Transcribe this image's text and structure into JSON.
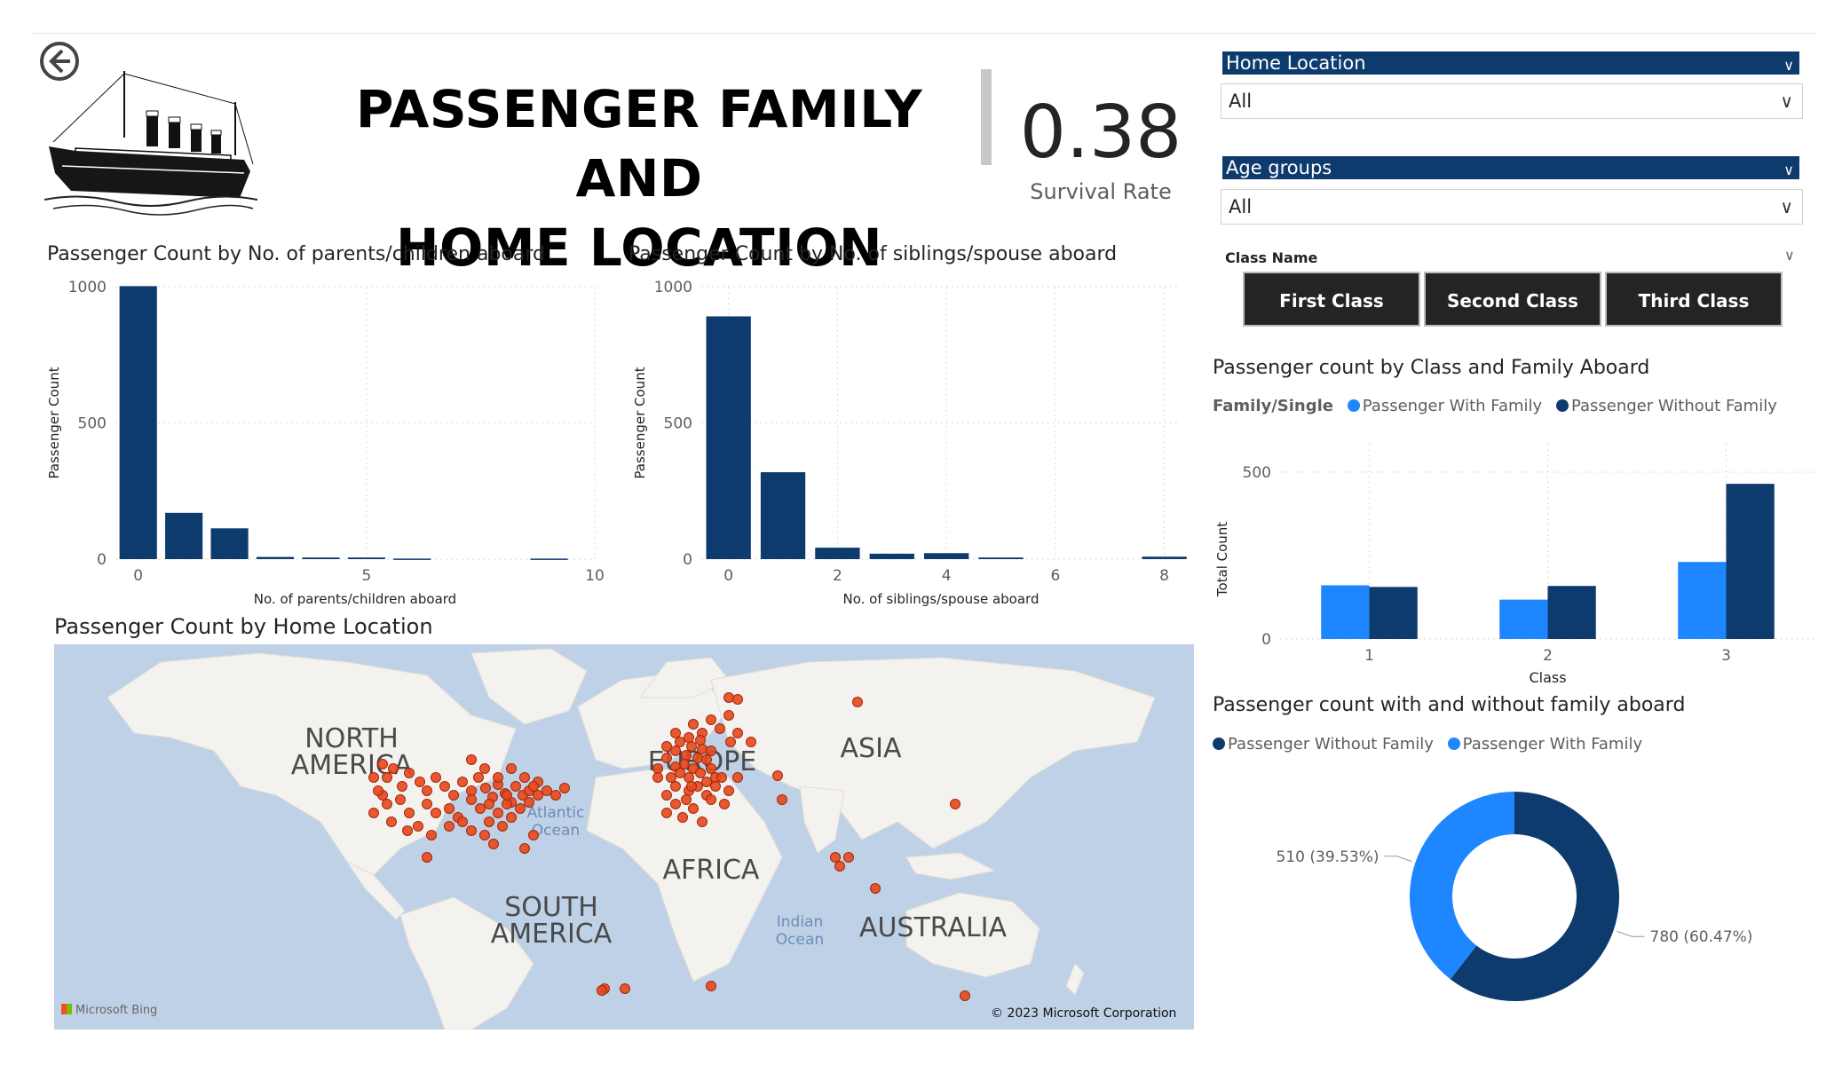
{
  "header": {
    "back_icon": "back-arrow-icon",
    "ship_icon": "titanic-ship-icon",
    "title_line1": "PASSENGER FAMILY AND",
    "title_line2": "HOME LOCATION"
  },
  "kpi": {
    "value": "0.38",
    "label": "Survival Rate"
  },
  "colors": {
    "navy": "#0e3b6d",
    "blue": "#1e87ff",
    "map_dot": "#e8481c"
  },
  "slicers": {
    "home_location": {
      "label": "Home Location",
      "value": "All"
    },
    "age_groups": {
      "label": "Age groups",
      "value": "All"
    },
    "class_name": {
      "label": "Class Name",
      "buttons": [
        "First Class",
        "Second Class",
        "Third Class"
      ]
    }
  },
  "chart_parch": {
    "title": "Passenger Count by No. of parents/children aboard",
    "chart_data": {
      "type": "bar",
      "x": [
        0,
        1,
        2,
        3,
        4,
        5,
        6,
        9
      ],
      "values": [
        1002,
        170,
        113,
        8,
        6,
        6,
        2,
        2
      ],
      "xlabel": "No. of parents/children aboard",
      "ylabel": "Passenger Count",
      "xticks": [
        "0",
        "5",
        "10"
      ],
      "yticks": [
        "0",
        "500",
        "1000"
      ],
      "xlim": [
        -0.5,
        10
      ],
      "ylim": [
        0,
        1000
      ]
    }
  },
  "chart_sibsp": {
    "title": "Passenger Count by No. of siblings/spouse aboard",
    "chart_data": {
      "type": "bar",
      "x": [
        0,
        1,
        2,
        3,
        4,
        5,
        8
      ],
      "values": [
        891,
        319,
        42,
        20,
        22,
        6,
        9
      ],
      "xlabel": "No. of siblings/spouse aboard",
      "ylabel": "Passenger Count",
      "xticks": [
        "0",
        "2",
        "4",
        "6",
        "8"
      ],
      "yticks": [
        "0",
        "500",
        "1000"
      ],
      "xlim": [
        -0.5,
        8.3
      ],
      "ylim": [
        0,
        1000
      ]
    }
  },
  "chart_class_family": {
    "title": "Passenger count by Class and Family Aboard",
    "legend_title": "Family/Single",
    "chart_data": {
      "type": "bar",
      "categories": [
        "1",
        "2",
        "3"
      ],
      "series": [
        {
          "name": "Passenger With Family",
          "values": [
            161,
            118,
            231
          ]
        },
        {
          "name": "Passenger Without Family",
          "values": [
            156,
            159,
            465
          ]
        }
      ],
      "xlabel": "Class",
      "ylabel": "Total Count",
      "yticks": [
        "0",
        "500"
      ],
      "ylim": [
        0,
        500
      ]
    }
  },
  "chart_donut": {
    "title": "Passenger count with and without family aboard",
    "chart_data": {
      "type": "pie",
      "labels": [
        "Passenger Without Family",
        "Passenger With Family"
      ],
      "values": [
        780,
        510
      ],
      "data_labels": [
        "780 (60.47%)",
        "510 (39.53%)"
      ]
    }
  },
  "map": {
    "title": "Passenger Count by Home Location",
    "continents": [
      "NORTH AMERICA",
      "EUROPE",
      "ASIA",
      "AFRICA",
      "SOUTH AMERICA",
      "AUSTRALIA"
    ],
    "oceans": [
      "Atlantic Ocean",
      "Indian Ocean"
    ],
    "attribution_left": "Microsoft Bing",
    "attribution_right": "© 2023 Microsoft Corporation"
  }
}
